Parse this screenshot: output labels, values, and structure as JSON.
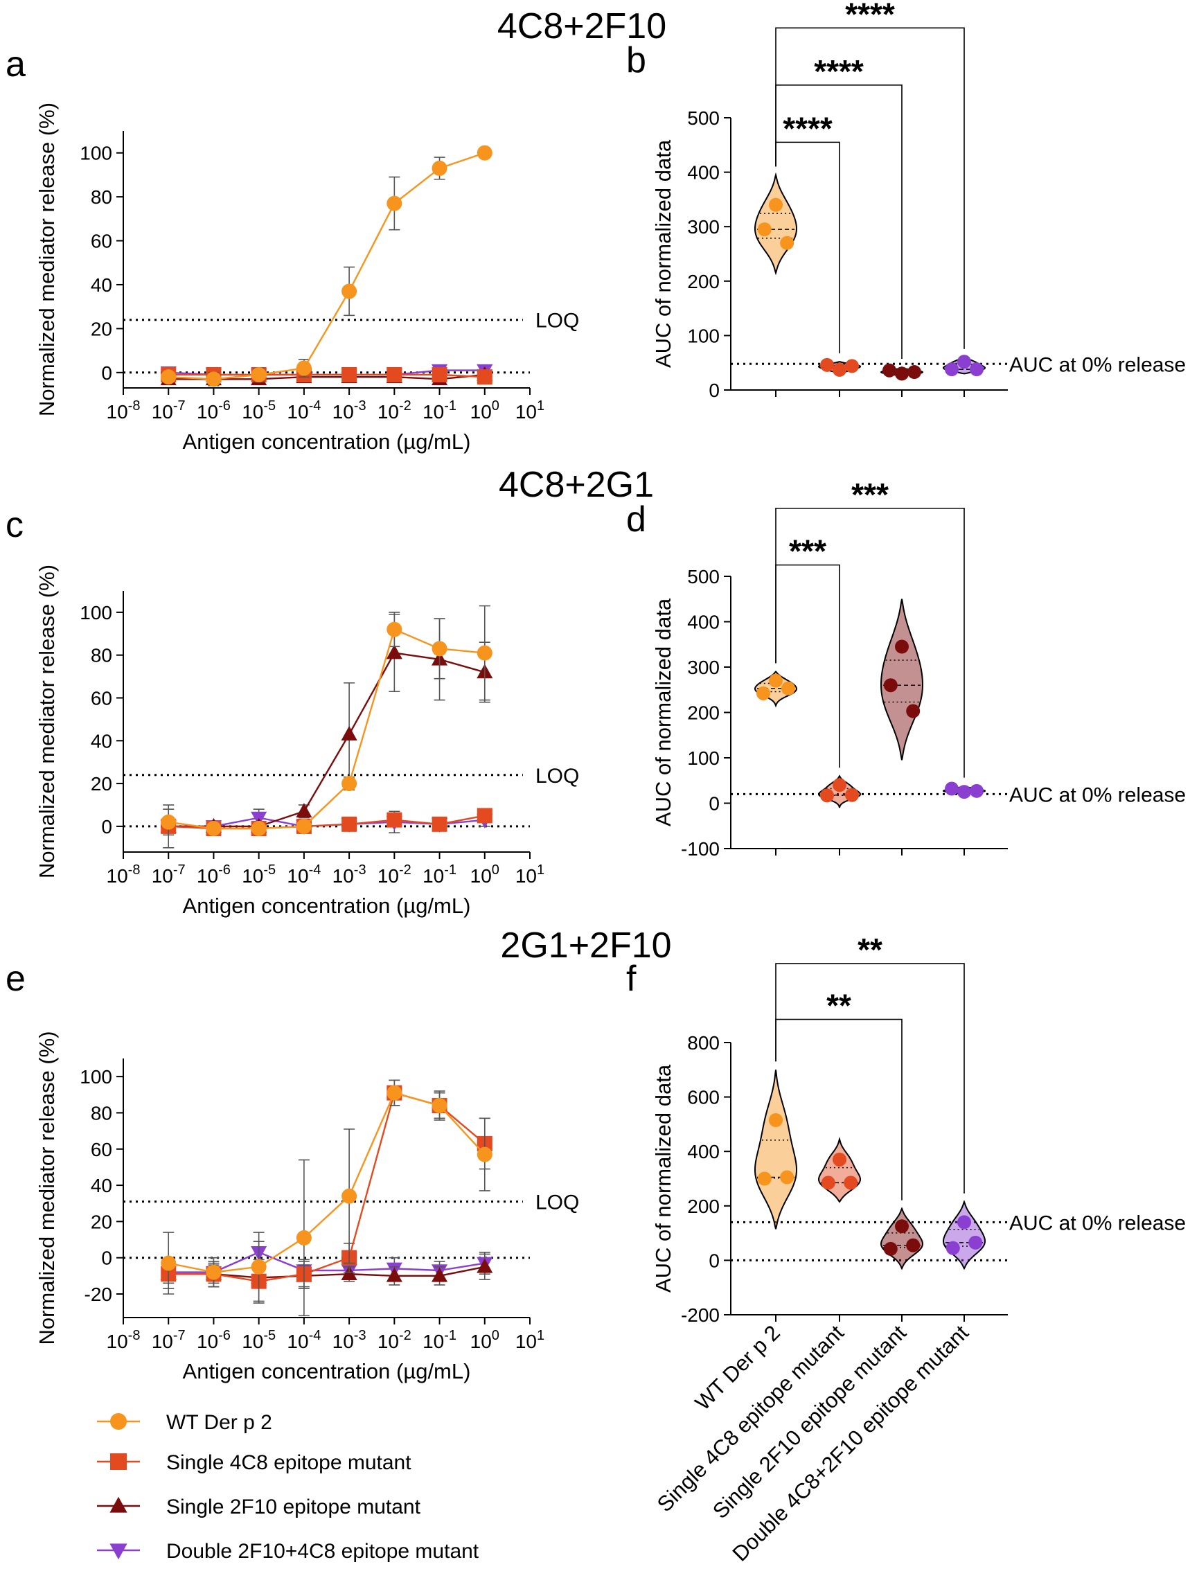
{
  "colors": {
    "WT": "#F7941D",
    "S4C8": "#E34A1F",
    "S2F10": "#7B0C0C",
    "D": "#8A3FD1",
    "axis": "#000000"
  },
  "legend": [
    {
      "key": "WT",
      "label": "WT Der p 2",
      "marker": "circle"
    },
    {
      "key": "S4C8",
      "label": "Single 4C8 epitope mutant",
      "marker": "square"
    },
    {
      "key": "S2F10",
      "label": "Single 2F10 epitope mutant",
      "marker": "triangle-up"
    },
    {
      "key": "D",
      "label": "Double 2F10+4C8 epitope mutant",
      "marker": "triangle-down"
    }
  ],
  "violin_categories": [
    "WT Der p 2",
    "Single 4C8 epitope mutant",
    "Single 2F10 epitope mutant",
    "Double 4C8+2F10 epitope mutant"
  ],
  "chart_data": [
    {
      "id": "a",
      "panel_label": "a",
      "group_title": "4C8+2F10",
      "type": "line",
      "xlabel": "Antigen concentration (µg/mL)",
      "ylabel": "Normalized mediator release (%)",
      "xlog": [
        -8,
        -7,
        -6,
        -5,
        -4,
        -3,
        -2,
        -1,
        0,
        1
      ],
      "ylim": [
        -7,
        110
      ],
      "yticks": [
        0,
        20,
        40,
        60,
        80,
        100
      ],
      "loq": 24,
      "loq_label": "LOQ",
      "zero_line": 0,
      "series": [
        {
          "key": "WT",
          "x": [
            -7,
            -6,
            -5,
            -4,
            -3,
            -2,
            -1,
            0
          ],
          "y": [
            -2,
            -3,
            -1,
            2,
            37,
            77,
            93,
            100
          ],
          "err": [
            2,
            3,
            3,
            4,
            11,
            12,
            5,
            0
          ]
        },
        {
          "key": "S4C8",
          "x": [
            -7,
            -6,
            -5,
            -4,
            -3,
            -2,
            -1,
            0
          ],
          "y": [
            -1,
            -1,
            -1,
            -1,
            -1,
            -1,
            -1,
            -2
          ],
          "err": [
            2,
            2,
            2,
            2,
            2,
            2,
            2,
            2
          ]
        },
        {
          "key": "S2F10",
          "x": [
            -7,
            -6,
            -5,
            -4,
            -3,
            -2,
            -1,
            0
          ],
          "y": [
            -3,
            -3,
            -3,
            -2,
            -2,
            -2,
            -3,
            -1
          ],
          "err": [
            2,
            2,
            2,
            2,
            2,
            2,
            2,
            2
          ]
        },
        {
          "key": "D",
          "x": [
            -7,
            -6,
            -5,
            -4,
            -3,
            -2,
            -1,
            0
          ],
          "y": [
            0,
            -1,
            -1,
            -1,
            -1,
            -1,
            1,
            1
          ],
          "err": [
            1,
            1,
            1,
            1,
            1,
            1,
            1,
            1
          ]
        }
      ]
    },
    {
      "id": "b",
      "panel_label": "b",
      "type": "violin",
      "ylabel": "AUC of normalized data",
      "ylim": [
        0,
        500
      ],
      "yticks": [
        0,
        100,
        200,
        300,
        400,
        500
      ],
      "ref_line": 48,
      "ref_label": "AUC at 0% release",
      "groups": [
        {
          "key": "WT",
          "points": [
            340,
            295,
            270
          ],
          "min": 215,
          "max": 395
        },
        {
          "key": "S4C8",
          "points": [
            37,
            46,
            44
          ],
          "min": 28,
          "max": 52
        },
        {
          "key": "S2F10",
          "points": [
            30,
            36,
            33
          ],
          "min": 22,
          "max": 42
        },
        {
          "key": "D",
          "points": [
            52,
            38,
            38
          ],
          "min": 30,
          "max": 60
        }
      ],
      "significance": [
        {
          "from": 0,
          "to": 1,
          "label": "****",
          "y": 455
        },
        {
          "from": 0,
          "to": 2,
          "label": "****",
          "y": 560
        },
        {
          "from": 0,
          "to": 3,
          "label": "****",
          "y": 665
        }
      ]
    },
    {
      "id": "c",
      "panel_label": "c",
      "group_title": "4C8+2G1",
      "type": "line",
      "xlabel": "Antigen concentration (µg/mL)",
      "ylabel": "Normalized mediator release (%)",
      "xlog": [
        -8,
        -7,
        -6,
        -5,
        -4,
        -3,
        -2,
        -1,
        0,
        1
      ],
      "ylim": [
        -12,
        110
      ],
      "yticks": [
        0,
        20,
        40,
        60,
        80,
        100
      ],
      "loq": 24,
      "loq_label": "LOQ",
      "zero_line": 0,
      "series": [
        {
          "key": "WT",
          "x": [
            -7,
            -6,
            -5,
            -4,
            -3,
            -2,
            -1,
            0
          ],
          "y": [
            2,
            -1,
            -1,
            0,
            20,
            92,
            83,
            81
          ],
          "err": [
            6,
            2,
            2,
            1,
            3,
            8,
            14,
            22
          ]
        },
        {
          "key": "S4C8",
          "x": [
            -7,
            -6,
            -5,
            -4,
            -3,
            -2,
            -1,
            0
          ],
          "y": [
            0,
            -1,
            -1,
            0,
            1,
            3,
            1,
            5
          ],
          "err": [
            3,
            2,
            2,
            1,
            2,
            3,
            2,
            3
          ]
        },
        {
          "key": "S2F10",
          "x": [
            -7,
            -6,
            -5,
            -4,
            -3,
            -2,
            -1,
            0
          ],
          "y": [
            0,
            0,
            0,
            7,
            43,
            81,
            78,
            72
          ],
          "err": [
            10,
            2,
            2,
            3,
            24,
            18,
            19,
            14
          ]
        },
        {
          "key": "D",
          "x": [
            -7,
            -6,
            -5,
            -4,
            -3,
            -2,
            -1,
            0
          ],
          "y": [
            0,
            0,
            4,
            0,
            1,
            2,
            1,
            3
          ],
          "err": [
            3,
            2,
            4,
            1,
            2,
            5,
            2,
            3
          ]
        }
      ]
    },
    {
      "id": "d",
      "panel_label": "d",
      "type": "violin",
      "ylabel": "AUC of normalized data",
      "ylim": [
        -100,
        500
      ],
      "yticks": [
        -100,
        0,
        100,
        200,
        300,
        400,
        500
      ],
      "ref_line": 20,
      "ref_label": "AUC at 0% release",
      "groups": [
        {
          "key": "WT",
          "points": [
            270,
            242,
            253
          ],
          "min": 215,
          "max": 290
        },
        {
          "key": "S4C8",
          "points": [
            40,
            17,
            18
          ],
          "min": -10,
          "max": 60
        },
        {
          "key": "S2F10",
          "points": [
            345,
            260,
            203
          ],
          "min": 95,
          "max": 450
        },
        {
          "key": "D",
          "points": [
            25,
            32,
            27
          ],
          "min": 18,
          "max": 38
        }
      ],
      "significance": [
        {
          "from": 0,
          "to": 1,
          "label": "***",
          "y": 525
        },
        {
          "from": 0,
          "to": 3,
          "label": "***",
          "y": 650
        }
      ]
    },
    {
      "id": "e",
      "panel_label": "e",
      "group_title": "2G1+2F10",
      "type": "line",
      "xlabel": "Antigen concentration (µg/mL)",
      "ylabel": "Normalized mediator release (%)",
      "xlog": [
        -8,
        -7,
        -6,
        -5,
        -4,
        -3,
        -2,
        -1,
        0,
        1
      ],
      "ylim": [
        -33,
        110
      ],
      "yticks": [
        -20,
        0,
        20,
        40,
        60,
        80,
        100
      ],
      "loq": 31,
      "loq_label": "LOQ",
      "zero_line": 0,
      "series": [
        {
          "key": "WT",
          "x": [
            -7,
            -6,
            -5,
            -4,
            -3,
            -2,
            -1,
            0
          ],
          "y": [
            -3,
            -8,
            -5,
            11,
            34,
            91,
            84,
            57
          ],
          "err": [
            17,
            8,
            19,
            43,
            37,
            7,
            8,
            20
          ]
        },
        {
          "key": "S4C8",
          "x": [
            -7,
            -6,
            -5,
            -4,
            -3,
            -2,
            -1,
            0
          ],
          "y": [
            -9,
            -9,
            -13,
            -9,
            0,
            91,
            84,
            63
          ],
          "err": [
            8,
            7,
            12,
            8,
            8,
            7,
            7,
            14
          ]
        },
        {
          "key": "S2F10",
          "x": [
            -7,
            -6,
            -5,
            -4,
            -3,
            -2,
            -1,
            0
          ],
          "y": [
            -9,
            -9,
            -11,
            -10,
            -9,
            -10,
            -10,
            -5
          ],
          "err": [
            5,
            5,
            5,
            6,
            4,
            5,
            5,
            7
          ]
        },
        {
          "key": "D",
          "x": [
            -7,
            -6,
            -5,
            -4,
            -3,
            -2,
            -1,
            0
          ],
          "y": [
            -8,
            -8,
            3,
            -7,
            -7,
            -6,
            -7,
            -3
          ],
          "err": [
            4,
            5,
            6,
            5,
            5,
            6,
            5,
            6
          ]
        }
      ]
    },
    {
      "id": "f",
      "panel_label": "f",
      "type": "violin",
      "ylabel": "AUC of normalized data",
      "ylim": [
        -200,
        800
      ],
      "yticks": [
        -200,
        0,
        200,
        400,
        600,
        800
      ],
      "ref_line": 140,
      "ref_label": "AUC at 0% release",
      "zero_line": 0,
      "groups": [
        {
          "key": "WT",
          "points": [
            515,
            300,
            305
          ],
          "min": 115,
          "max": 700
        },
        {
          "key": "S4C8",
          "points": [
            370,
            285,
            285
          ],
          "min": 215,
          "max": 445
        },
        {
          "key": "S2F10",
          "points": [
            125,
            42,
            55
          ],
          "min": -30,
          "max": 190
        },
        {
          "key": "D",
          "points": [
            140,
            45,
            65
          ],
          "min": -30,
          "max": 215
        }
      ],
      "significance": [
        {
          "from": 0,
          "to": 2,
          "label": "**",
          "y": 885
        },
        {
          "from": 0,
          "to": 3,
          "label": "**",
          "y": 1090
        }
      ]
    }
  ]
}
